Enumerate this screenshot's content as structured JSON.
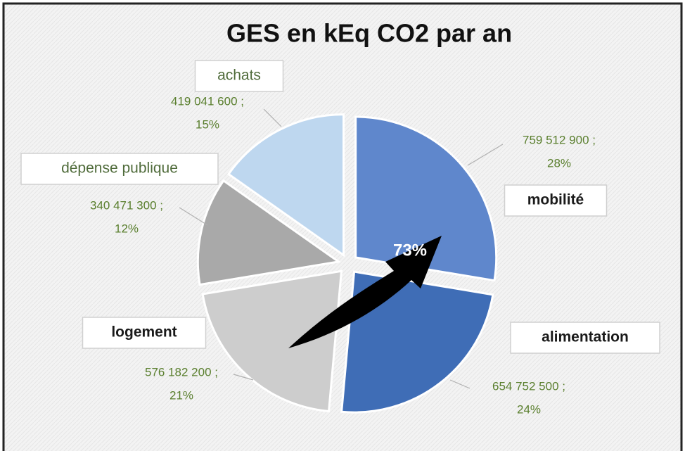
{
  "chart_data": {
    "type": "pie",
    "title": "GES en kEq CO2 par an",
    "categories": [
      "mobilité",
      "alimentation",
      "logement",
      "dépense publique",
      "achats"
    ],
    "values": [
      759512900,
      654752500,
      576182200,
      340471300,
      419041600
    ],
    "value_labels": [
      "759 512 900 ;",
      "654 752 500 ;",
      "576 182 200 ;",
      "340 471 300 ;",
      "419 041 600 ;"
    ],
    "percent_labels": [
      "28%",
      "24%",
      "21%",
      "12%",
      "15%"
    ],
    "colors": [
      "#5f87cc",
      "#3f6db6",
      "#cdcdcd",
      "#a9a9a9",
      "#bed7ef"
    ],
    "annotation": "73%"
  }
}
